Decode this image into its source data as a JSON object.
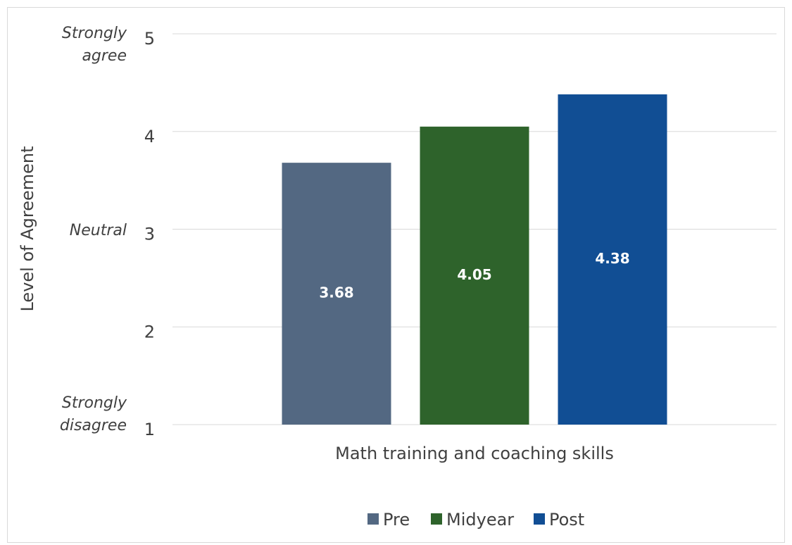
{
  "chart_data": {
    "type": "bar",
    "ylabel": "Level of Agreement",
    "categories": [
      "Math training and coaching skills"
    ],
    "series": [
      {
        "name": "Pre",
        "color": "#536882",
        "values": [
          3.68
        ]
      },
      {
        "name": "Midyear",
        "color": "#2e632b",
        "values": [
          4.05
        ]
      },
      {
        "name": "Post",
        "color": "#114e94",
        "values": [
          4.38
        ]
      }
    ],
    "ylim": [
      1,
      5
    ],
    "yticks": [
      1,
      2,
      3,
      4,
      5
    ],
    "grid": true,
    "legend": "bottom",
    "annotations": [
      {
        "text": "Strongly agree",
        "y": 5
      },
      {
        "text": "Neutral",
        "y": 3
      },
      {
        "text": "Strongly disagree",
        "y": 1
      }
    ]
  }
}
